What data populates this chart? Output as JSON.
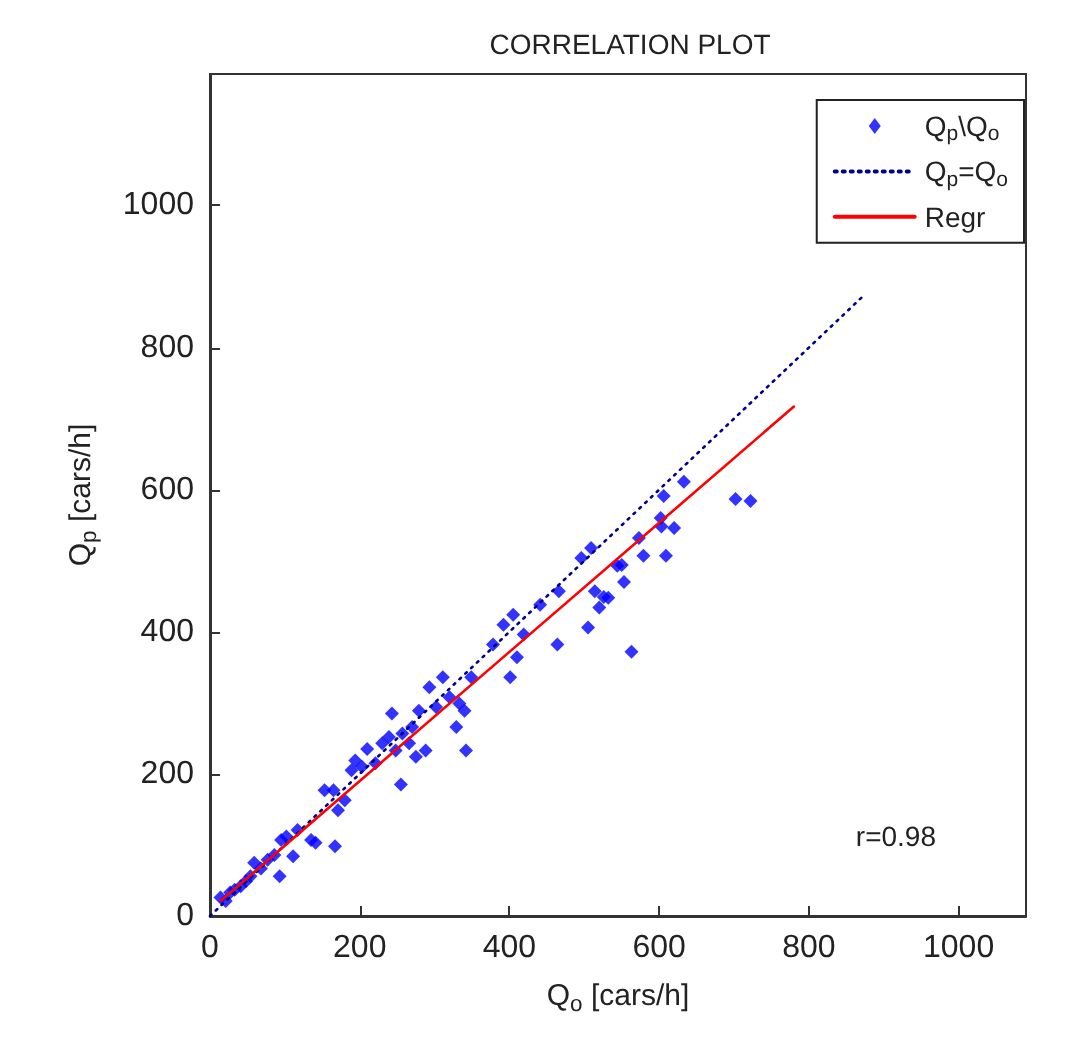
{
  "chart_data": {
    "type": "scatter",
    "title": "CORRELATION PLOT",
    "xlabel": "Q$_{o}$ [cars/h]",
    "ylabel": "Q$_{p}$ [cars/h]",
    "xlim": [
      0,
      1090
    ],
    "ylim": [
      0,
      1185
    ],
    "xticks": [
      0,
      200,
      400,
      600,
      800,
      1000
    ],
    "yticks": [
      0,
      200,
      400,
      600,
      800,
      1000
    ],
    "grid": false,
    "legend": "top right",
    "annotations": [
      "r=0.98"
    ],
    "series": [
      {
        "name": "Q$_{p}$\\Q$_{o}$",
        "marker": "diamond",
        "color": "#0000ff",
        "x": [
          14,
          21,
          27,
          33,
          41,
          48,
          54,
          59,
          68,
          77,
          86,
          93,
          95,
          102,
          111,
          117,
          135,
          141,
          153,
          165,
          167,
          171,
          180,
          189,
          194,
          203,
          210,
          221,
          230,
          239,
          243,
          248,
          255,
          257,
          266,
          270,
          275,
          279,
          288,
          293,
          302,
          311,
          320,
          329,
          333,
          340,
          342,
          349,
          378,
          392,
          401,
          405,
          410,
          419,
          441,
          464,
          466,
          496,
          505,
          509,
          514,
          520,
          532,
          550,
          526,
          544,
          553,
          563,
          573,
          579,
          602,
          603,
          609,
          606,
          620,
          633,
          702,
          722
        ],
        "values": [
          26,
          21,
          33,
          37,
          42,
          49,
          56,
          75,
          67,
          79,
          86,
          56,
          107,
          112,
          84,
          121,
          107,
          103,
          177,
          177,
          98,
          149,
          163,
          205,
          219,
          210,
          235,
          215,
          243,
          252,
          285,
          233,
          185,
          257,
          243,
          266,
          224,
          289,
          233,
          322,
          294,
          336,
          308,
          266,
          299,
          289,
          233,
          336,
          382,
          410,
          336,
          424,
          364,
          396,
          438,
          382,
          457,
          504,
          406,
          518,
          457,
          434,
          448,
          494,
          449,
          493,
          470,
          372,
          532,
          507,
          560,
          548,
          507,
          591,
          546,
          611,
          587,
          584
        ]
      },
      {
        "name": "Q$_{p}$=Q$_{o}$",
        "type": "line",
        "marker": "none",
        "line_style": "dotted",
        "color": "#00008b",
        "x": [
          0,
          870
        ],
        "values": [
          0,
          870
        ]
      },
      {
        "name": "Regr",
        "type": "line",
        "marker": "none",
        "line_style": "solid",
        "color": "#ff0000",
        "x": [
          14,
          780
        ],
        "values": [
          21,
          717
        ]
      }
    ]
  }
}
